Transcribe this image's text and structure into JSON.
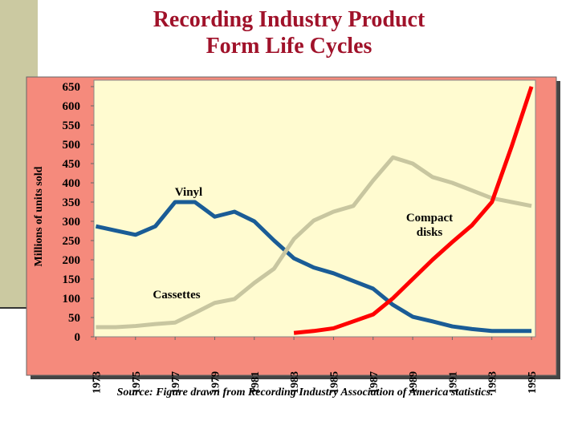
{
  "chart_data": {
    "type": "line",
    "title": "Recording Industry Product Form Life Cycles",
    "y_axis_label": "Millions of units sold",
    "source": "Source: Figure drawn from Recording Industry Association of America statistics.",
    "annotations": [
      "Vinyl",
      "Compact disks",
      "Cassettes"
    ],
    "x": [
      1973,
      1974,
      1975,
      1976,
      1977,
      1978,
      1979,
      1980,
      1981,
      1982,
      1983,
      1984,
      1985,
      1986,
      1987,
      1988,
      1989,
      1990,
      1991,
      1992,
      1993,
      1994,
      1995
    ],
    "xlim": [
      1972.9,
      1995.2
    ],
    "xticks": [
      1973,
      1975,
      1977,
      1979,
      1981,
      1983,
      1985,
      1987,
      1989,
      1991,
      1993,
      1995
    ],
    "ylim": [
      0,
      650
    ],
    "yticks": [
      0,
      50,
      100,
      150,
      200,
      250,
      300,
      350,
      400,
      450,
      500,
      550,
      600,
      650
    ],
    "series": [
      {
        "color": "#1a5c96",
        "values": [
          287,
          276,
          265,
          287,
          350,
          350,
          312,
          325,
          300,
          250,
          204,
          180,
          165,
          145,
          125,
          83,
          52,
          40,
          27,
          20,
          15,
          15,
          15
        ]
      },
      {
        "color": "#c8c6a0",
        "values": [
          25,
          25,
          28,
          33,
          37,
          62,
          88,
          98,
          140,
          177,
          254,
          302,
          325,
          340,
          406,
          466,
          450,
          415,
          400,
          380,
          360,
          350,
          340
        ]
      },
      {
        "color": "#ff0000",
        "values": [
          null,
          null,
          null,
          null,
          null,
          null,
          null,
          null,
          null,
          null,
          10,
          15,
          22,
          40,
          58,
          100,
          150,
          200,
          246,
          290,
          350,
          495,
          650
        ]
      }
    ]
  }
}
